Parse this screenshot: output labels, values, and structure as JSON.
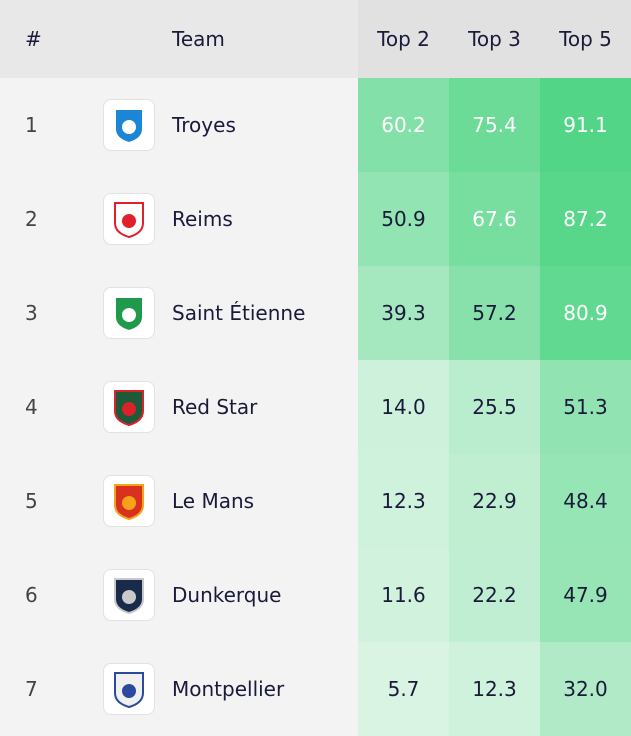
{
  "header": {
    "rank": "#",
    "team": "Team",
    "top2": "Top 2",
    "top3": "Top 3",
    "top5": "Top 5"
  },
  "rows": [
    {
      "rank": "1",
      "team": "Troyes",
      "top2": "60.2",
      "top3": "75.4",
      "top5": "91.1"
    },
    {
      "rank": "2",
      "team": "Reims",
      "top2": "50.9",
      "top3": "67.6",
      "top5": "87.2"
    },
    {
      "rank": "3",
      "team": "Saint Étienne",
      "top2": "39.3",
      "top3": "57.2",
      "top5": "80.9"
    },
    {
      "rank": "4",
      "team": "Red Star",
      "top2": "14.0",
      "top3": "25.5",
      "top5": "51.3"
    },
    {
      "rank": "5",
      "team": "Le Mans",
      "top2": "12.3",
      "top3": "22.9",
      "top5": "48.4"
    },
    {
      "rank": "6",
      "team": "Dunkerque",
      "top2": "11.6",
      "top3": "22.2",
      "top5": "47.9"
    },
    {
      "rank": "7",
      "team": "Montpellier",
      "top2": "5.7",
      "top3": "12.3",
      "top5": "32.0"
    }
  ]
}
